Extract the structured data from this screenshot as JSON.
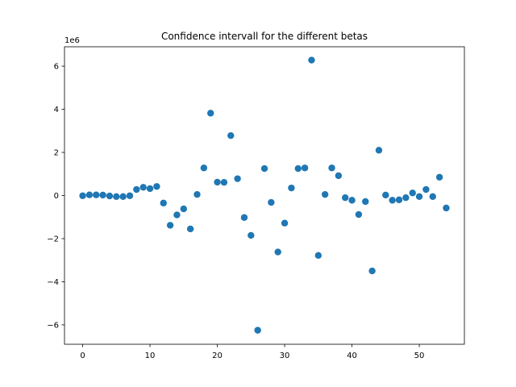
{
  "chart_data": {
    "type": "scatter",
    "title": "Confidence intervall for the different betas",
    "xlabel": "",
    "ylabel": "",
    "offset_text": "1e6",
    "xlim": [
      -2.7,
      56.7
    ],
    "ylim": [
      -6.9,
      6.9
    ],
    "y_scale": 1000000,
    "xticks": [
      0,
      10,
      20,
      30,
      40,
      50
    ],
    "xtick_labels": [
      "0",
      "10",
      "20",
      "30",
      "40",
      "50"
    ],
    "yticks": [
      -6,
      -4,
      -2,
      0,
      2,
      4,
      6
    ],
    "ytick_labels": [
      "−6",
      "−4",
      "−2",
      "0",
      "2",
      "4",
      "6"
    ],
    "grid": false,
    "marker_color": "#1f77b4",
    "series": [
      {
        "x": [
          0,
          1,
          2,
          3,
          4,
          5,
          6,
          7,
          8,
          9,
          10,
          11,
          12,
          13,
          14,
          15,
          16,
          17,
          18,
          19,
          20,
          21,
          22,
          23,
          24,
          25,
          26,
          27,
          28,
          29,
          30,
          31,
          32,
          33,
          34,
          35,
          36,
          37,
          38,
          39,
          40,
          41,
          42,
          43,
          44,
          45,
          46,
          47,
          48,
          49,
          50,
          51,
          52,
          53,
          54
        ],
        "y": [
          -0.01,
          0.03,
          0.03,
          0.02,
          -0.02,
          -0.05,
          -0.05,
          -0.01,
          0.28,
          0.38,
          0.32,
          0.42,
          -0.35,
          -1.38,
          -0.9,
          -0.62,
          -1.55,
          0.05,
          1.28,
          3.82,
          0.62,
          0.61,
          2.78,
          0.78,
          -1.02,
          -1.85,
          -6.25,
          1.25,
          -0.32,
          -2.62,
          -1.28,
          0.35,
          1.25,
          1.28,
          6.28,
          -2.78,
          0.05,
          1.28,
          0.92,
          -0.1,
          -0.22,
          -0.88,
          -0.28,
          -3.5,
          2.1,
          0.02,
          -0.22,
          -0.2,
          -0.1,
          0.12,
          -0.05,
          0.28,
          -0.05,
          0.85,
          -0.58
        ]
      }
    ]
  }
}
